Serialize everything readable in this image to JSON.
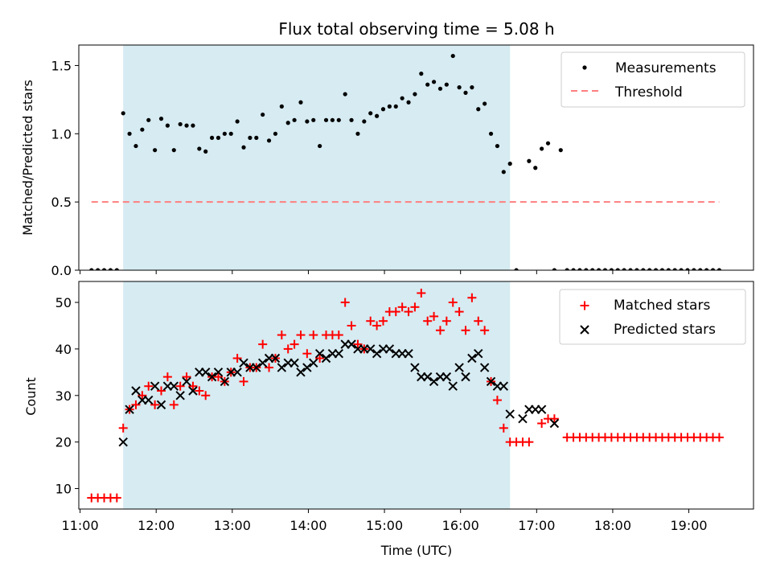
{
  "title": "Flux total observing time = 5.08 h",
  "colors": {
    "shade": "#add8e6",
    "measurement": "#000000",
    "threshold": "#ff7f7f",
    "matched": "#ff0000",
    "predicted": "#000000"
  },
  "chart_data": [
    {
      "type": "scatter",
      "ylabel": "Matched/Predicted stars",
      "xlim": [
        "10:59",
        "19:51"
      ],
      "ylim": [
        0,
        1.65
      ],
      "yticks": [
        0.0,
        0.5,
        1.0,
        1.5
      ],
      "ytick_labels": [
        "0.0",
        "0.5",
        "1.0",
        "1.5"
      ],
      "shaded_interval": [
        "11:34",
        "16:39"
      ],
      "legend": {
        "position": "top-right",
        "labels": [
          "Measurements",
          "Threshold"
        ]
      },
      "threshold": {
        "name": "Threshold",
        "y": 0.5,
        "x": [
          "11:09",
          "19:24"
        ]
      },
      "measurements": {
        "name": "Measurements",
        "x": [
          "11:09",
          "11:14",
          "11:19",
          "11:24",
          "11:29",
          "11:34",
          "11:39",
          "11:44",
          "11:49",
          "11:54",
          "11:59",
          "12:04",
          "12:09",
          "12:14",
          "12:19",
          "12:24",
          "12:29",
          "12:34",
          "12:39",
          "12:44",
          "12:49",
          "12:54",
          "12:59",
          "13:04",
          "13:09",
          "13:14",
          "13:19",
          "13:24",
          "13:29",
          "13:34",
          "13:39",
          "13:44",
          "13:49",
          "13:54",
          "13:59",
          "14:04",
          "14:09",
          "14:14",
          "14:19",
          "14:24",
          "14:29",
          "14:34",
          "14:39",
          "14:44",
          "14:49",
          "14:54",
          "14:59",
          "15:04",
          "15:09",
          "15:14",
          "15:19",
          "15:24",
          "15:29",
          "15:34",
          "15:39",
          "15:44",
          "15:49",
          "15:54",
          "15:59",
          "16:04",
          "16:09",
          "16:14",
          "16:19",
          "16:24",
          "16:29",
          "16:34",
          "16:39",
          "16:44",
          "16:49",
          "16:54",
          "16:59",
          "17:04",
          "17:09",
          "17:14",
          "17:19",
          "17:24",
          "17:29",
          "17:34",
          "17:39",
          "17:44",
          "17:49",
          "17:54",
          "17:59",
          "18:04",
          "18:09",
          "18:14",
          "18:19",
          "18:24",
          "18:29",
          "18:34",
          "18:39",
          "18:44",
          "18:49",
          "18:54",
          "18:59",
          "19:04",
          "19:09",
          "19:14",
          "19:19",
          "19:24"
        ],
        "y": [
          0,
          0,
          0,
          0,
          0,
          1.15,
          1.0,
          0.91,
          1.03,
          1.1,
          0.88,
          1.11,
          1.06,
          0.88,
          1.07,
          1.06,
          1.06,
          0.89,
          0.87,
          0.97,
          0.97,
          1.0,
          1.0,
          1.09,
          0.9,
          0.97,
          0.97,
          1.14,
          0.95,
          1.0,
          1.2,
          1.08,
          1.1,
          1.23,
          1.09,
          1.1,
          0.91,
          1.1,
          1.1,
          1.1,
          1.29,
          1.1,
          1.0,
          1.09,
          1.15,
          1.13,
          1.18,
          1.2,
          1.2,
          1.26,
          1.23,
          1.29,
          1.44,
          1.36,
          1.38,
          1.33,
          1.36,
          1.57,
          1.34,
          1.3,
          1.34,
          1.18,
          1.22,
          1.0,
          0.91,
          0.72,
          0.78,
          0,
          null,
          0.8,
          0.75,
          0.89,
          0.93,
          0,
          0.88,
          0,
          0,
          0,
          0,
          0,
          0,
          0,
          0,
          0,
          0,
          0,
          0,
          0,
          0,
          0,
          0,
          0,
          0,
          0,
          0,
          0,
          0,
          0,
          0,
          0
        ]
      }
    },
    {
      "type": "scatter",
      "xlabel": "Time (UTC)",
      "ylabel": "Count",
      "xlim": [
        "10:59",
        "19:51"
      ],
      "ylim": [
        5.6,
        54.5
      ],
      "yticks": [
        10,
        20,
        30,
        40,
        50
      ],
      "xticks": [
        "11:00",
        "12:00",
        "13:00",
        "14:00",
        "15:00",
        "16:00",
        "17:00",
        "18:00",
        "19:00"
      ],
      "shaded_interval": [
        "11:34",
        "16:39"
      ],
      "legend": {
        "position": "top-right",
        "labels": [
          "Matched stars",
          "Predicted stars"
        ]
      },
      "matched": {
        "name": "Matched stars",
        "x": [
          "11:09",
          "11:14",
          "11:19",
          "11:24",
          "11:29",
          "11:34",
          "11:39",
          "11:44",
          "11:49",
          "11:54",
          "11:59",
          "12:04",
          "12:09",
          "12:14",
          "12:19",
          "12:24",
          "12:29",
          "12:34",
          "12:39",
          "12:44",
          "12:49",
          "12:54",
          "12:59",
          "13:04",
          "13:09",
          "13:14",
          "13:19",
          "13:24",
          "13:29",
          "13:34",
          "13:39",
          "13:44",
          "13:49",
          "13:54",
          "13:59",
          "14:04",
          "14:09",
          "14:14",
          "14:19",
          "14:24",
          "14:29",
          "14:34",
          "14:39",
          "14:44",
          "14:49",
          "14:54",
          "14:59",
          "15:04",
          "15:09",
          "15:14",
          "15:19",
          "15:24",
          "15:29",
          "15:34",
          "15:39",
          "15:44",
          "15:49",
          "15:54",
          "15:59",
          "16:04",
          "16:09",
          "16:14",
          "16:19",
          "16:24",
          "16:29",
          "16:34",
          "16:39",
          "16:44",
          "16:49",
          "16:54",
          "16:59",
          "17:04",
          "17:09",
          "17:14",
          "17:19",
          "17:24",
          "17:29",
          "17:34",
          "17:39",
          "17:44",
          "17:49",
          "17:54",
          "17:59",
          "18:04",
          "18:09",
          "18:14",
          "18:19",
          "18:24",
          "18:29",
          "18:34",
          "18:39",
          "18:44",
          "18:49",
          "18:54",
          "18:59",
          "19:04",
          "19:09",
          "19:14",
          "19:19",
          "19:24"
        ],
        "y": [
          8,
          8,
          8,
          8,
          8,
          23,
          27,
          28,
          30,
          32,
          28,
          31,
          34,
          28,
          32,
          34,
          32,
          31,
          30,
          34,
          34,
          33,
          35,
          38,
          33,
          36,
          36,
          41,
          36,
          38,
          43,
          40,
          41,
          43,
          39,
          43,
          38,
          43,
          43,
          43,
          50,
          45,
          41,
          40,
          46,
          45,
          46,
          48,
          48,
          49,
          48,
          49,
          52,
          46,
          47,
          44,
          46,
          50,
          48,
          44,
          51,
          46,
          44,
          33,
          29,
          23,
          20,
          20,
          20,
          20,
          null,
          24,
          25,
          25,
          null,
          21,
          21,
          21,
          21,
          21,
          21,
          21,
          21,
          21,
          21,
          21,
          21,
          21,
          21,
          21,
          21,
          21,
          21,
          21,
          21,
          21,
          21,
          21,
          21,
          21
        ]
      },
      "predicted": {
        "name": "Predicted stars",
        "x": [
          "11:34",
          "11:39",
          "11:44",
          "11:49",
          "11:54",
          "11:59",
          "12:04",
          "12:09",
          "12:14",
          "12:19",
          "12:24",
          "12:29",
          "12:34",
          "12:39",
          "12:44",
          "12:49",
          "12:54",
          "12:59",
          "13:04",
          "13:09",
          "13:14",
          "13:19",
          "13:24",
          "13:29",
          "13:34",
          "13:39",
          "13:44",
          "13:49",
          "13:54",
          "13:59",
          "14:04",
          "14:09",
          "14:14",
          "14:19",
          "14:24",
          "14:29",
          "14:34",
          "14:39",
          "14:44",
          "14:49",
          "14:54",
          "14:59",
          "15:04",
          "15:09",
          "15:14",
          "15:19",
          "15:24",
          "15:29",
          "15:34",
          "15:39",
          "15:44",
          "15:49",
          "15:54",
          "15:59",
          "16:04",
          "16:09",
          "16:14",
          "16:19",
          "16:24",
          "16:29",
          "16:34",
          "16:39",
          "16:49",
          "16:54",
          "16:59",
          "17:04",
          "17:14"
        ],
        "y": [
          20,
          27,
          31,
          29,
          29,
          32,
          28,
          32,
          32,
          30,
          33,
          31,
          35,
          35,
          34,
          35,
          33,
          35,
          35,
          37,
          36,
          36,
          37,
          38,
          38,
          36,
          37,
          37,
          35,
          36,
          37,
          39,
          38,
          39,
          39,
          41,
          41,
          40,
          40,
          40,
          39,
          40,
          40,
          39,
          39,
          39,
          36,
          34,
          34,
          33,
          34,
          34,
          32,
          36,
          34,
          38,
          39,
          36,
          33,
          32,
          32,
          26,
          25,
          27,
          27,
          27,
          24
        ]
      }
    }
  ]
}
